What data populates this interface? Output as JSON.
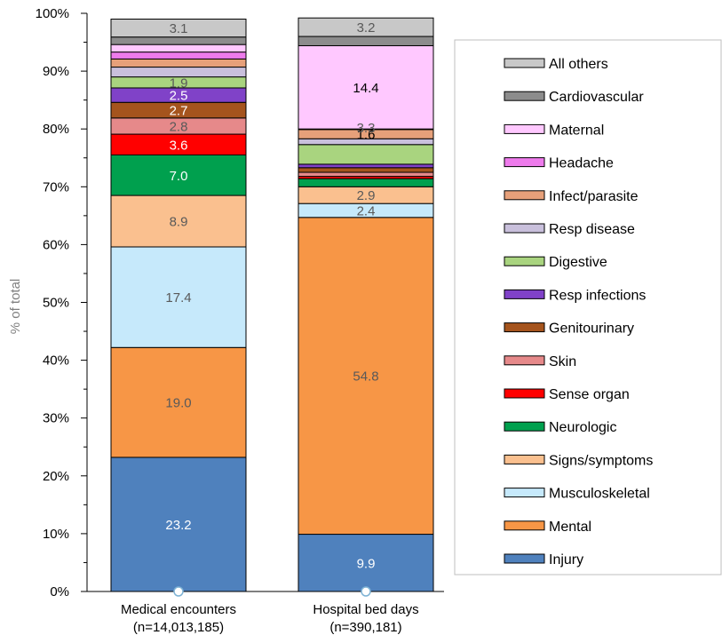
{
  "chart_data": {
    "type": "bar",
    "stacked": true,
    "ylabel": "% of total",
    "ylim": [
      0,
      100
    ],
    "yticks": [
      "0%",
      "10%",
      "20%",
      "30%",
      "40%",
      "50%",
      "60%",
      "70%",
      "80%",
      "90%",
      "100%"
    ],
    "grid": false,
    "legend_position": "right",
    "categories": [
      {
        "label": "Medical encounters",
        "sublabel": "(n=14,013,185)"
      },
      {
        "label": "Hospital bed days",
        "sublabel": "(n=390,181)"
      }
    ],
    "series": [
      {
        "name": "Injury",
        "color": "#4f81bd",
        "values": [
          23.2,
          9.9
        ],
        "labels": [
          "23.2",
          "9.9"
        ],
        "label_color": "#ffffff"
      },
      {
        "name": "Mental",
        "color": "#f79646",
        "values": [
          19.0,
          54.8
        ],
        "labels": [
          "19.0",
          "54.8"
        ],
        "label_color": "#595959"
      },
      {
        "name": "Musculoskeletal",
        "color": "#c6e9fb",
        "values": [
          17.4,
          2.4
        ],
        "labels": [
          "17.4",
          "2.4"
        ],
        "label_color": "#595959"
      },
      {
        "name": "Signs/symptoms",
        "color": "#fac08f",
        "values": [
          8.9,
          2.9
        ],
        "labels": [
          "8.9",
          "2.9"
        ],
        "label_color": "#595959"
      },
      {
        "name": "Neurologic",
        "color": "#00a04e",
        "values": [
          7.0,
          1.4
        ],
        "labels": [
          "7.0",
          ""
        ],
        "label_color": "#ffffff"
      },
      {
        "name": "Sense organ",
        "color": "#ff0000",
        "values": [
          3.6,
          0.4
        ],
        "labels": [
          "3.6",
          ""
        ],
        "label_color": "#ffffff"
      },
      {
        "name": "Skin",
        "color": "#e6898a",
        "values": [
          2.8,
          0.7
        ],
        "labels": [
          "2.8",
          ""
        ],
        "label_color": "#595959"
      },
      {
        "name": "Genitourinary",
        "color": "#a5541d",
        "values": [
          2.7,
          0.8
        ],
        "labels": [
          "2.7",
          ""
        ],
        "label_color": "#ffffff"
      },
      {
        "name": "Resp infections",
        "color": "#8042c8",
        "values": [
          2.5,
          0.6
        ],
        "labels": [
          "2.5",
          ""
        ],
        "label_color": "#ffffff"
      },
      {
        "name": "Digestive",
        "color": "#a9d47f",
        "values": [
          1.9,
          3.4
        ],
        "labels": [
          "1.9",
          ""
        ],
        "label_color": "#595959"
      },
      {
        "name": "Resp disease",
        "color": "#c9c0dc",
        "values": [
          1.7,
          1.0
        ],
        "labels": [
          "",
          ""
        ],
        "label_color": "#595959"
      },
      {
        "name": "Infect/parasite",
        "color": "#e6a07a",
        "values": [
          1.4,
          1.6
        ],
        "labels": [
          "",
          "1.6"
        ],
        "label_color": "#000000"
      },
      {
        "name": "Headache",
        "color": "#ee7bec",
        "values": [
          1.2,
          0.1
        ],
        "labels": [
          "",
          ""
        ],
        "label_color": "#595959"
      },
      {
        "name": "Maternal",
        "color": "#ffc8ff",
        "values": [
          1.3,
          14.4
        ],
        "labels": [
          "",
          "14.4"
        ],
        "label_color": "#000000"
      },
      {
        "name": "Cardiovascular",
        "color": "#8c8c8c",
        "values": [
          1.3,
          1.6
        ],
        "labels": [
          "",
          ""
        ],
        "label_color": "#595959"
      },
      {
        "name": "All others",
        "color": "#c8c8c8",
        "values": [
          3.1,
          3.2
        ],
        "labels": [
          "3.1",
          "3.2"
        ],
        "label_color": "#595959"
      }
    ],
    "overlapping_labels": [
      {
        "category": 1,
        "text": "3.3",
        "near_series": "Infect/parasite"
      }
    ],
    "legend_order": [
      "All others",
      "Cardiovascular",
      "Maternal",
      "Headache",
      "Infect/parasite",
      "Resp disease",
      "Digestive",
      "Resp infections",
      "Genitourinary",
      "Skin",
      "Sense organ",
      "Neurologic",
      "Signs/symptoms",
      "Musculoskeletal",
      "Mental",
      "Injury"
    ]
  }
}
